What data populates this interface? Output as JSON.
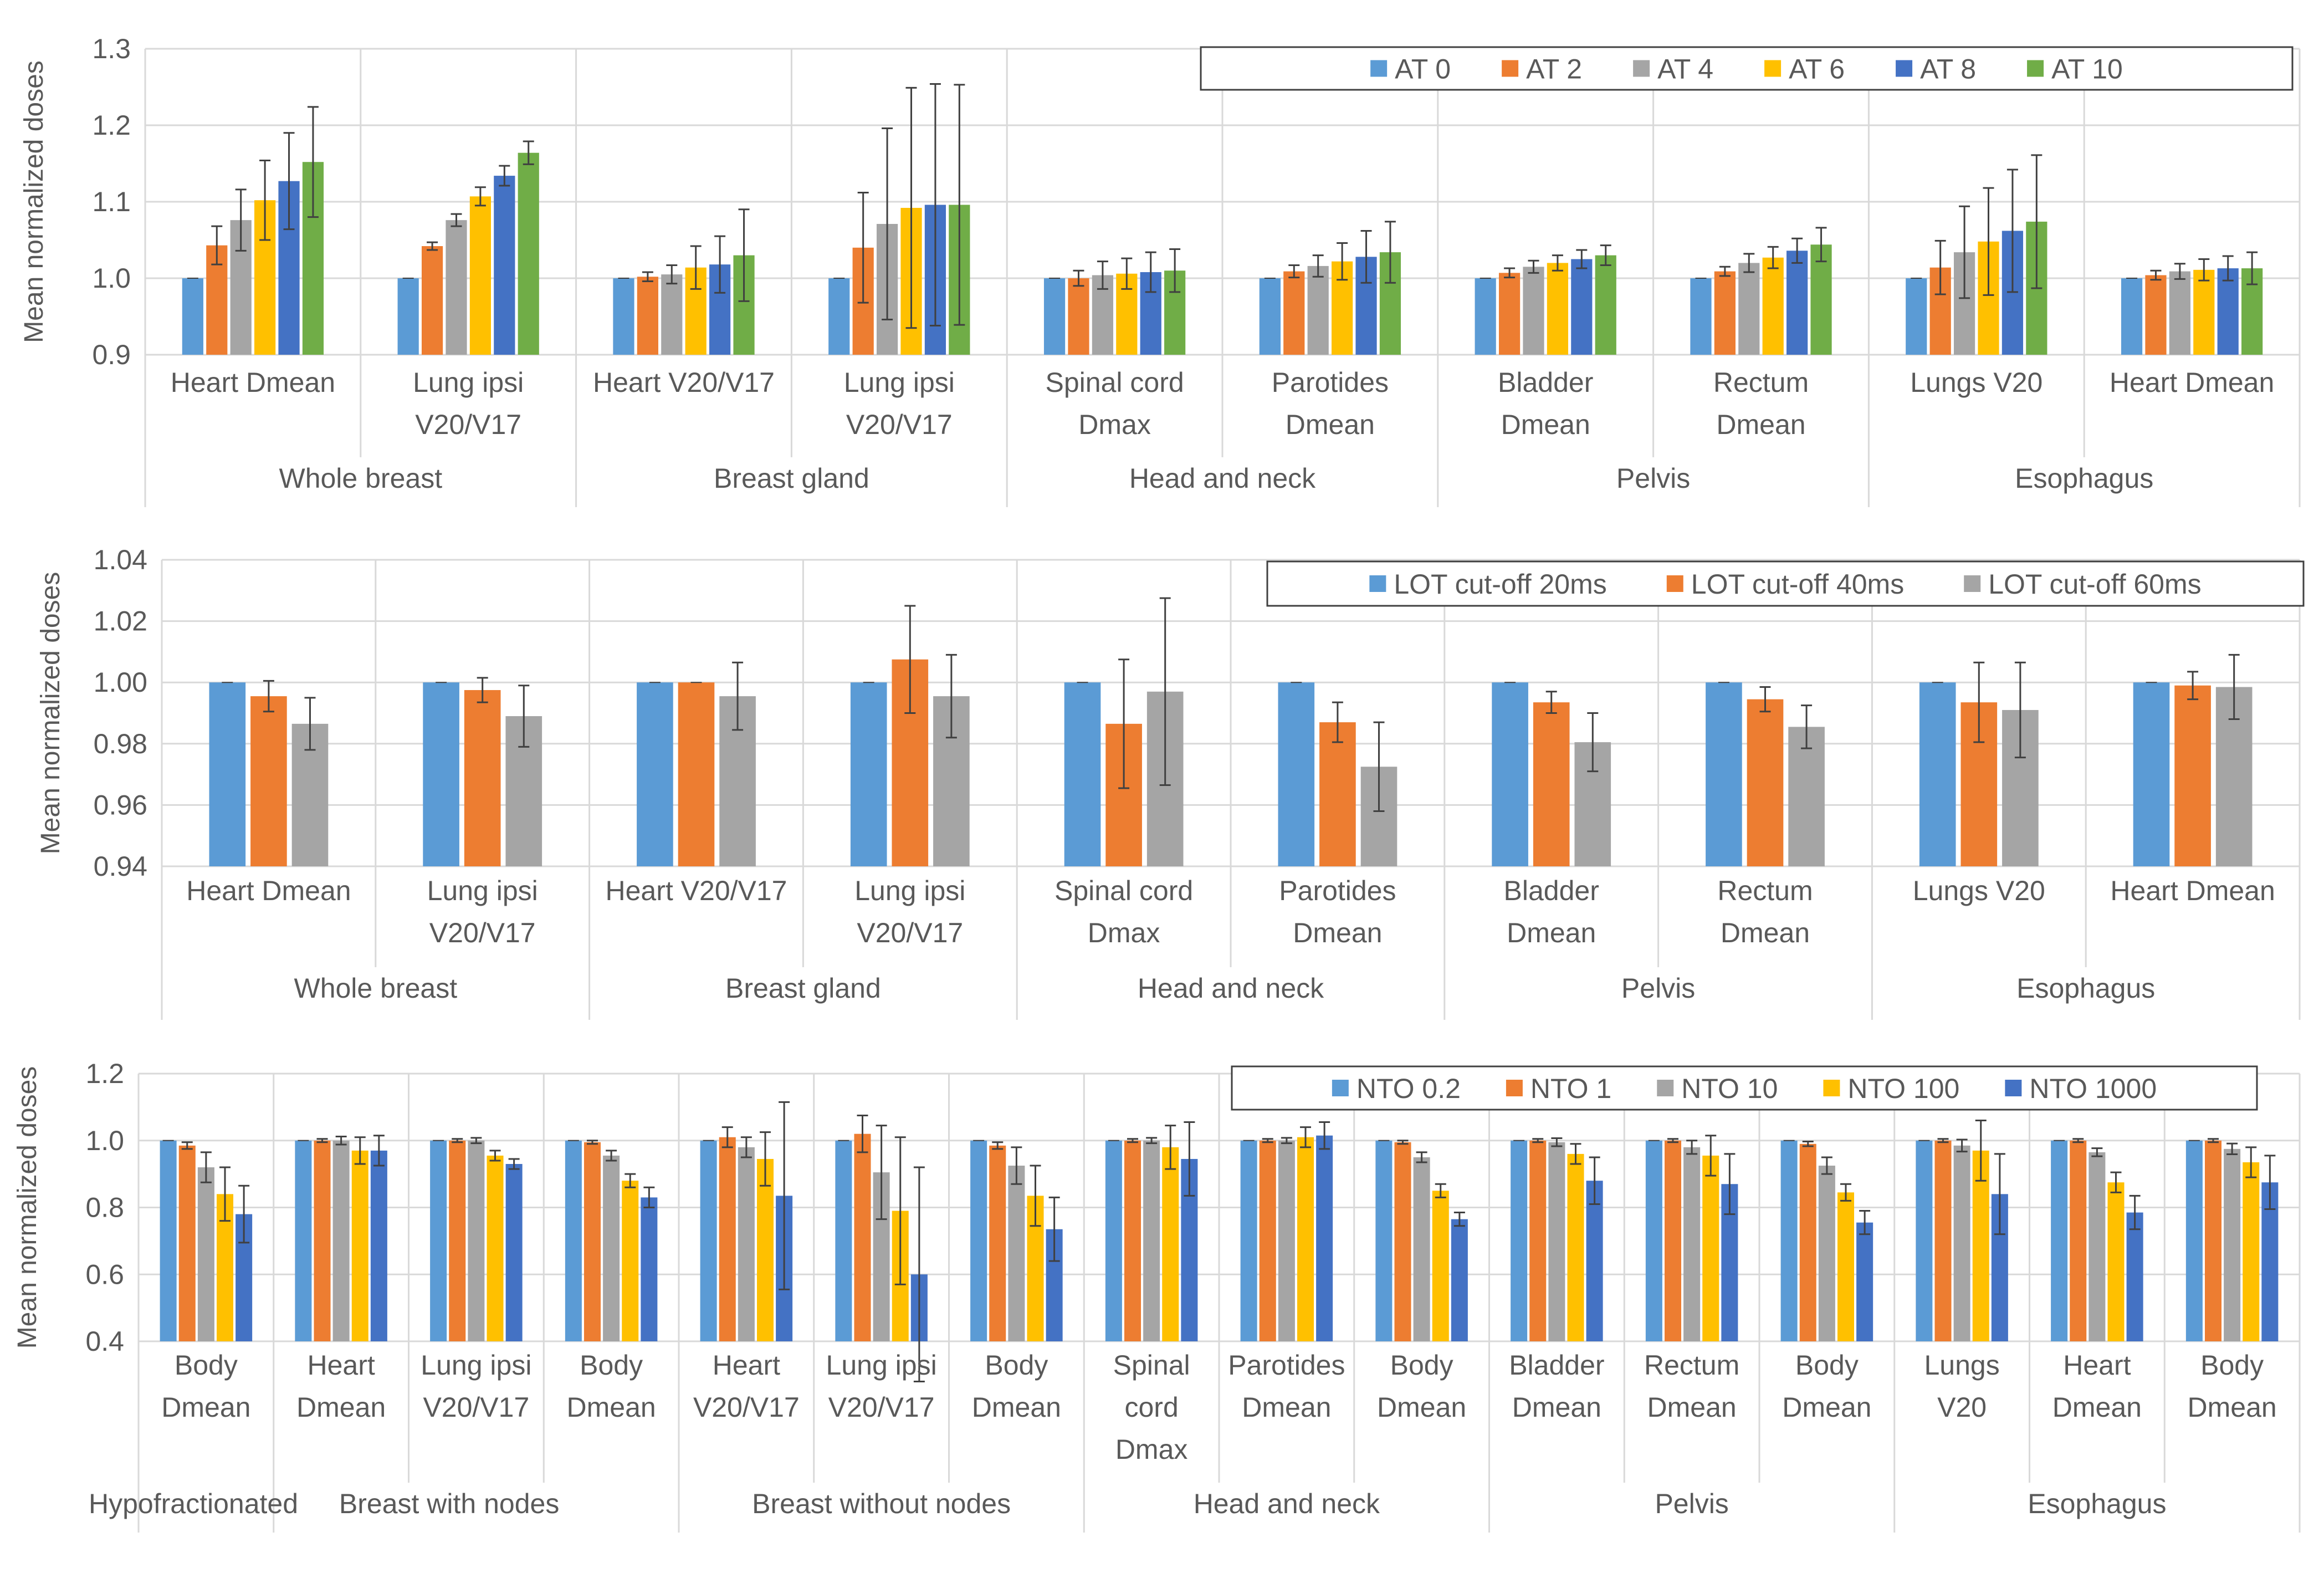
{
  "colors": {
    "blue_light": "#5B9BD5",
    "orange": "#ED7D31",
    "gray": "#A5A5A5",
    "gold": "#FFC000",
    "blue_dark": "#4472C4",
    "green": "#70AD47",
    "grid": "#d9d9d9",
    "text": "#595959",
    "error": "#404040"
  },
  "chart_data": [
    {
      "type": "bar",
      "ylabel": "Mean normalized doses",
      "ylim": [
        0.9,
        1.3
      ],
      "ytick_step": 0.1,
      "tick_decimals": 1,
      "yticks_label": [
        "0.9",
        "1.0",
        "1.1",
        "1.2",
        "1.3"
      ],
      "legend_position": "top-right",
      "groups": [
        {
          "name": "Whole breast",
          "categories": [
            [
              "Heart Dmean"
            ],
            [
              "Lung ipsi",
              "V20/V17"
            ]
          ]
        },
        {
          "name": "Breast gland",
          "categories": [
            [
              "Heart V20/V17"
            ],
            [
              "Lung ipsi",
              "V20/V17"
            ]
          ]
        },
        {
          "name": "Head and neck",
          "categories": [
            [
              "Spinal cord",
              "Dmax"
            ],
            [
              "Parotides",
              "Dmean"
            ]
          ]
        },
        {
          "name": "Pelvis",
          "categories": [
            [
              "Bladder",
              "Dmean"
            ],
            [
              "Rectum",
              "Dmean"
            ]
          ]
        },
        {
          "name": "Esophagus",
          "categories": [
            [
              "Lungs V20"
            ],
            [
              "Heart Dmean"
            ]
          ]
        }
      ],
      "series": [
        {
          "name": "AT 0",
          "color": "#5B9BD5",
          "values": [
            1.0,
            1.0,
            1.0,
            1.0,
            1.0,
            1.0,
            1.0,
            1.0,
            1.0,
            1.0
          ],
          "errors": [
            0,
            0,
            0,
            0,
            0,
            0,
            0,
            0,
            0,
            0
          ]
        },
        {
          "name": "AT 2",
          "color": "#ED7D31",
          "values": [
            1.043,
            1.042,
            1.002,
            1.04,
            1.0,
            1.009,
            1.007,
            1.009,
            1.014,
            1.004
          ],
          "errors": [
            0.025,
            0.005,
            0.006,
            0.072,
            0.01,
            0.008,
            0.006,
            0.006,
            0.035,
            0.006
          ]
        },
        {
          "name": "AT 4",
          "color": "#A5A5A5",
          "values": [
            1.076,
            1.076,
            1.005,
            1.071,
            1.004,
            1.016,
            1.015,
            1.02,
            1.034,
            1.009
          ]
        },
        {
          "name": "AT 6",
          "color": "#FFC000",
          "values": [
            1.102,
            1.107,
            1.014,
            1.092,
            1.006,
            1.022,
            1.02,
            1.027,
            1.048,
            1.011
          ]
        },
        {
          "name": "AT 8",
          "color": "#4472C4",
          "values": [
            1.127,
            1.134,
            1.018,
            1.096,
            1.008,
            1.028,
            1.025,
            1.036,
            1.062,
            1.013
          ]
        },
        {
          "name": "AT 10",
          "color": "#70AD47",
          "values": [
            1.152,
            1.164,
            1.03,
            1.096,
            1.01,
            1.034,
            1.03,
            1.044,
            1.074,
            1.013
          ]
        }
      ],
      "series_errors": [
        [
          0,
          0,
          0,
          0,
          0,
          0,
          0,
          0,
          0,
          0
        ],
        [
          0.025,
          0.005,
          0.006,
          0.072,
          0.01,
          0.008,
          0.006,
          0.006,
          0.035,
          0.006
        ],
        [
          0.04,
          0.008,
          0.012,
          0.125,
          0.018,
          0.014,
          0.008,
          0.012,
          0.06,
          0.01
        ],
        [
          0.052,
          0.012,
          0.028,
          0.157,
          0.02,
          0.024,
          0.01,
          0.014,
          0.07,
          0.014
        ],
        [
          0.063,
          0.013,
          0.037,
          0.158,
          0.026,
          0.034,
          0.012,
          0.016,
          0.08,
          0.016
        ],
        [
          0.072,
          0.015,
          0.06,
          0.157,
          0.028,
          0.04,
          0.013,
          0.022,
          0.087,
          0.021
        ]
      ]
    },
    {
      "type": "bar",
      "ylabel": "Mean normalized doses",
      "ylim": [
        0.94,
        1.04
      ],
      "ytick_step": 0.02,
      "tick_decimals": 2,
      "yticks_label": [
        "0.94",
        "0.96",
        "0.98",
        "1.00",
        "1.02",
        "1.04"
      ],
      "legend_position": "top-right",
      "groups": [
        {
          "name": "Whole breast",
          "categories": [
            [
              "Heart Dmean"
            ],
            [
              "Lung ipsi",
              "V20/V17"
            ]
          ]
        },
        {
          "name": "Breast gland",
          "categories": [
            [
              "Heart V20/V17"
            ],
            [
              "Lung ipsi",
              "V20/V17"
            ]
          ]
        },
        {
          "name": "Head and neck",
          "categories": [
            [
              "Spinal cord",
              "Dmax"
            ],
            [
              "Parotides",
              "Dmean"
            ]
          ]
        },
        {
          "name": "Pelvis",
          "categories": [
            [
              "Bladder",
              "Dmean"
            ],
            [
              "Rectum",
              "Dmean"
            ]
          ]
        },
        {
          "name": "Esophagus",
          "categories": [
            [
              "Lungs V20"
            ],
            [
              "Heart Dmean"
            ]
          ]
        }
      ],
      "series": [
        {
          "name": "LOT cut-off 20ms",
          "color": "#5B9BD5",
          "values": [
            1.0,
            1.0,
            1.0,
            1.0,
            1.0,
            1.0,
            1.0,
            1.0,
            1.0,
            1.0
          ]
        },
        {
          "name": "LOT cut-off 40ms",
          "color": "#ED7D31",
          "values": [
            0.9955,
            0.9975,
            1.0,
            1.0075,
            0.9865,
            0.987,
            0.9935,
            0.9945,
            0.9935,
            0.999
          ]
        },
        {
          "name": "LOT cut-off 60ms",
          "color": "#A5A5A5",
          "values": [
            0.9865,
            0.989,
            0.9955,
            0.9955,
            0.997,
            0.9725,
            0.9805,
            0.9855,
            0.991,
            0.9985
          ]
        }
      ],
      "series_errors": [
        [
          0,
          0,
          0,
          0,
          0,
          0,
          0,
          0,
          0,
          0
        ],
        [
          0.005,
          0.004,
          0,
          0.0175,
          0.021,
          0.0065,
          0.0035,
          0.004,
          0.013,
          0.0045
        ],
        [
          0.0085,
          0.01,
          0.011,
          0.0135,
          0.0305,
          0.0145,
          0.0095,
          0.007,
          0.0155,
          0.0105
        ]
      ]
    },
    {
      "type": "bar",
      "ylabel": "Mean normalized doses",
      "ylim": [
        0.4,
        1.2
      ],
      "ytick_step": 0.2,
      "tick_decimals": 1,
      "yticks_label": [
        "0.4",
        "0.6",
        "0.8",
        "1.0",
        "1.2"
      ],
      "legend_position": "top-right",
      "groups": [
        {
          "name": "Hypofractionated",
          "categories": [
            [
              "Body",
              "Dmean"
            ]
          ]
        },
        {
          "name": "Breast with nodes",
          "categories": [
            [
              "Heart",
              "Dmean"
            ],
            [
              "Lung ipsi",
              "V20/V17"
            ],
            [
              "Body",
              "Dmean"
            ]
          ]
        },
        {
          "name": "Breast without nodes",
          "categories": [
            [
              "Heart",
              "V20/V17"
            ],
            [
              "Lung ipsi",
              "V20/V17"
            ],
            [
              "Body",
              "Dmean"
            ]
          ]
        },
        {
          "name": "Head and neck",
          "categories": [
            [
              "Spinal",
              "cord",
              "Dmax"
            ],
            [
              "Parotides",
              "Dmean"
            ],
            [
              "Body",
              "Dmean"
            ]
          ]
        },
        {
          "name": "Pelvis",
          "categories": [
            [
              "Bladder",
              "Dmean"
            ],
            [
              "Rectum",
              "Dmean"
            ],
            [
              "Body",
              "Dmean"
            ]
          ]
        },
        {
          "name": "Esophagus",
          "categories": [
            [
              "Lungs",
              "V20"
            ],
            [
              "Heart",
              "Dmean"
            ],
            [
              "Body",
              "Dmean"
            ]
          ]
        }
      ],
      "series": [
        {
          "name": "NTO 0.2",
          "color": "#5B9BD5",
          "values": [
            1.0,
            1.0,
            1.0,
            1.0,
            1.0,
            1.0,
            1.0,
            1.0,
            1.0,
            1.0,
            1.0,
            1.0,
            1.0,
            1.0,
            1.0,
            1.0
          ]
        },
        {
          "name": "NTO 1",
          "color": "#ED7D31",
          "values": [
            0.985,
            1.0,
            1.0,
            0.995,
            1.01,
            1.02,
            0.985,
            1.0,
            1.0,
            0.995,
            1.0,
            1.0,
            0.99,
            1.0,
            1.0,
            1.0
          ]
        },
        {
          "name": "NTO 10",
          "color": "#A5A5A5",
          "values": [
            0.92,
            1.0,
            1.0,
            0.955,
            0.98,
            0.905,
            0.925,
            1.0,
            1.0,
            0.95,
            0.995,
            0.98,
            0.925,
            0.985,
            0.965,
            0.975
          ]
        },
        {
          "name": "NTO 100",
          "color": "#FFC000",
          "values": [
            0.84,
            0.97,
            0.955,
            0.88,
            0.945,
            0.79,
            0.835,
            0.98,
            1.01,
            0.85,
            0.96,
            0.955,
            0.845,
            0.97,
            0.875,
            0.935
          ]
        },
        {
          "name": "NTO 1000",
          "color": "#4472C4",
          "values": [
            0.78,
            0.97,
            0.93,
            0.83,
            0.835,
            0.6,
            0.735,
            0.945,
            1.015,
            0.765,
            0.88,
            0.87,
            0.755,
            0.84,
            0.785,
            0.875
          ]
        }
      ],
      "series_errors": [
        [
          0,
          0,
          0,
          0,
          0,
          0,
          0,
          0,
          0,
          0,
          0,
          0,
          0,
          0,
          0,
          0
        ],
        [
          0.01,
          0.005,
          0.005,
          0.005,
          0.03,
          0.055,
          0.01,
          0.005,
          0.005,
          0.005,
          0.005,
          0.005,
          0.007,
          0.005,
          0.005,
          0.005
        ],
        [
          0.045,
          0.012,
          0.008,
          0.015,
          0.03,
          0.14,
          0.055,
          0.008,
          0.008,
          0.015,
          0.012,
          0.02,
          0.025,
          0.018,
          0.012,
          0.016
        ],
        [
          0.08,
          0.04,
          0.015,
          0.02,
          0.08,
          0.22,
          0.09,
          0.065,
          0.03,
          0.02,
          0.03,
          0.06,
          0.025,
          0.09,
          0.03,
          0.045
        ],
        [
          0.085,
          0.045,
          0.015,
          0.03,
          0.28,
          0.32,
          0.095,
          0.11,
          0.04,
          0.02,
          0.07,
          0.09,
          0.035,
          0.12,
          0.05,
          0.08
        ]
      ]
    }
  ]
}
